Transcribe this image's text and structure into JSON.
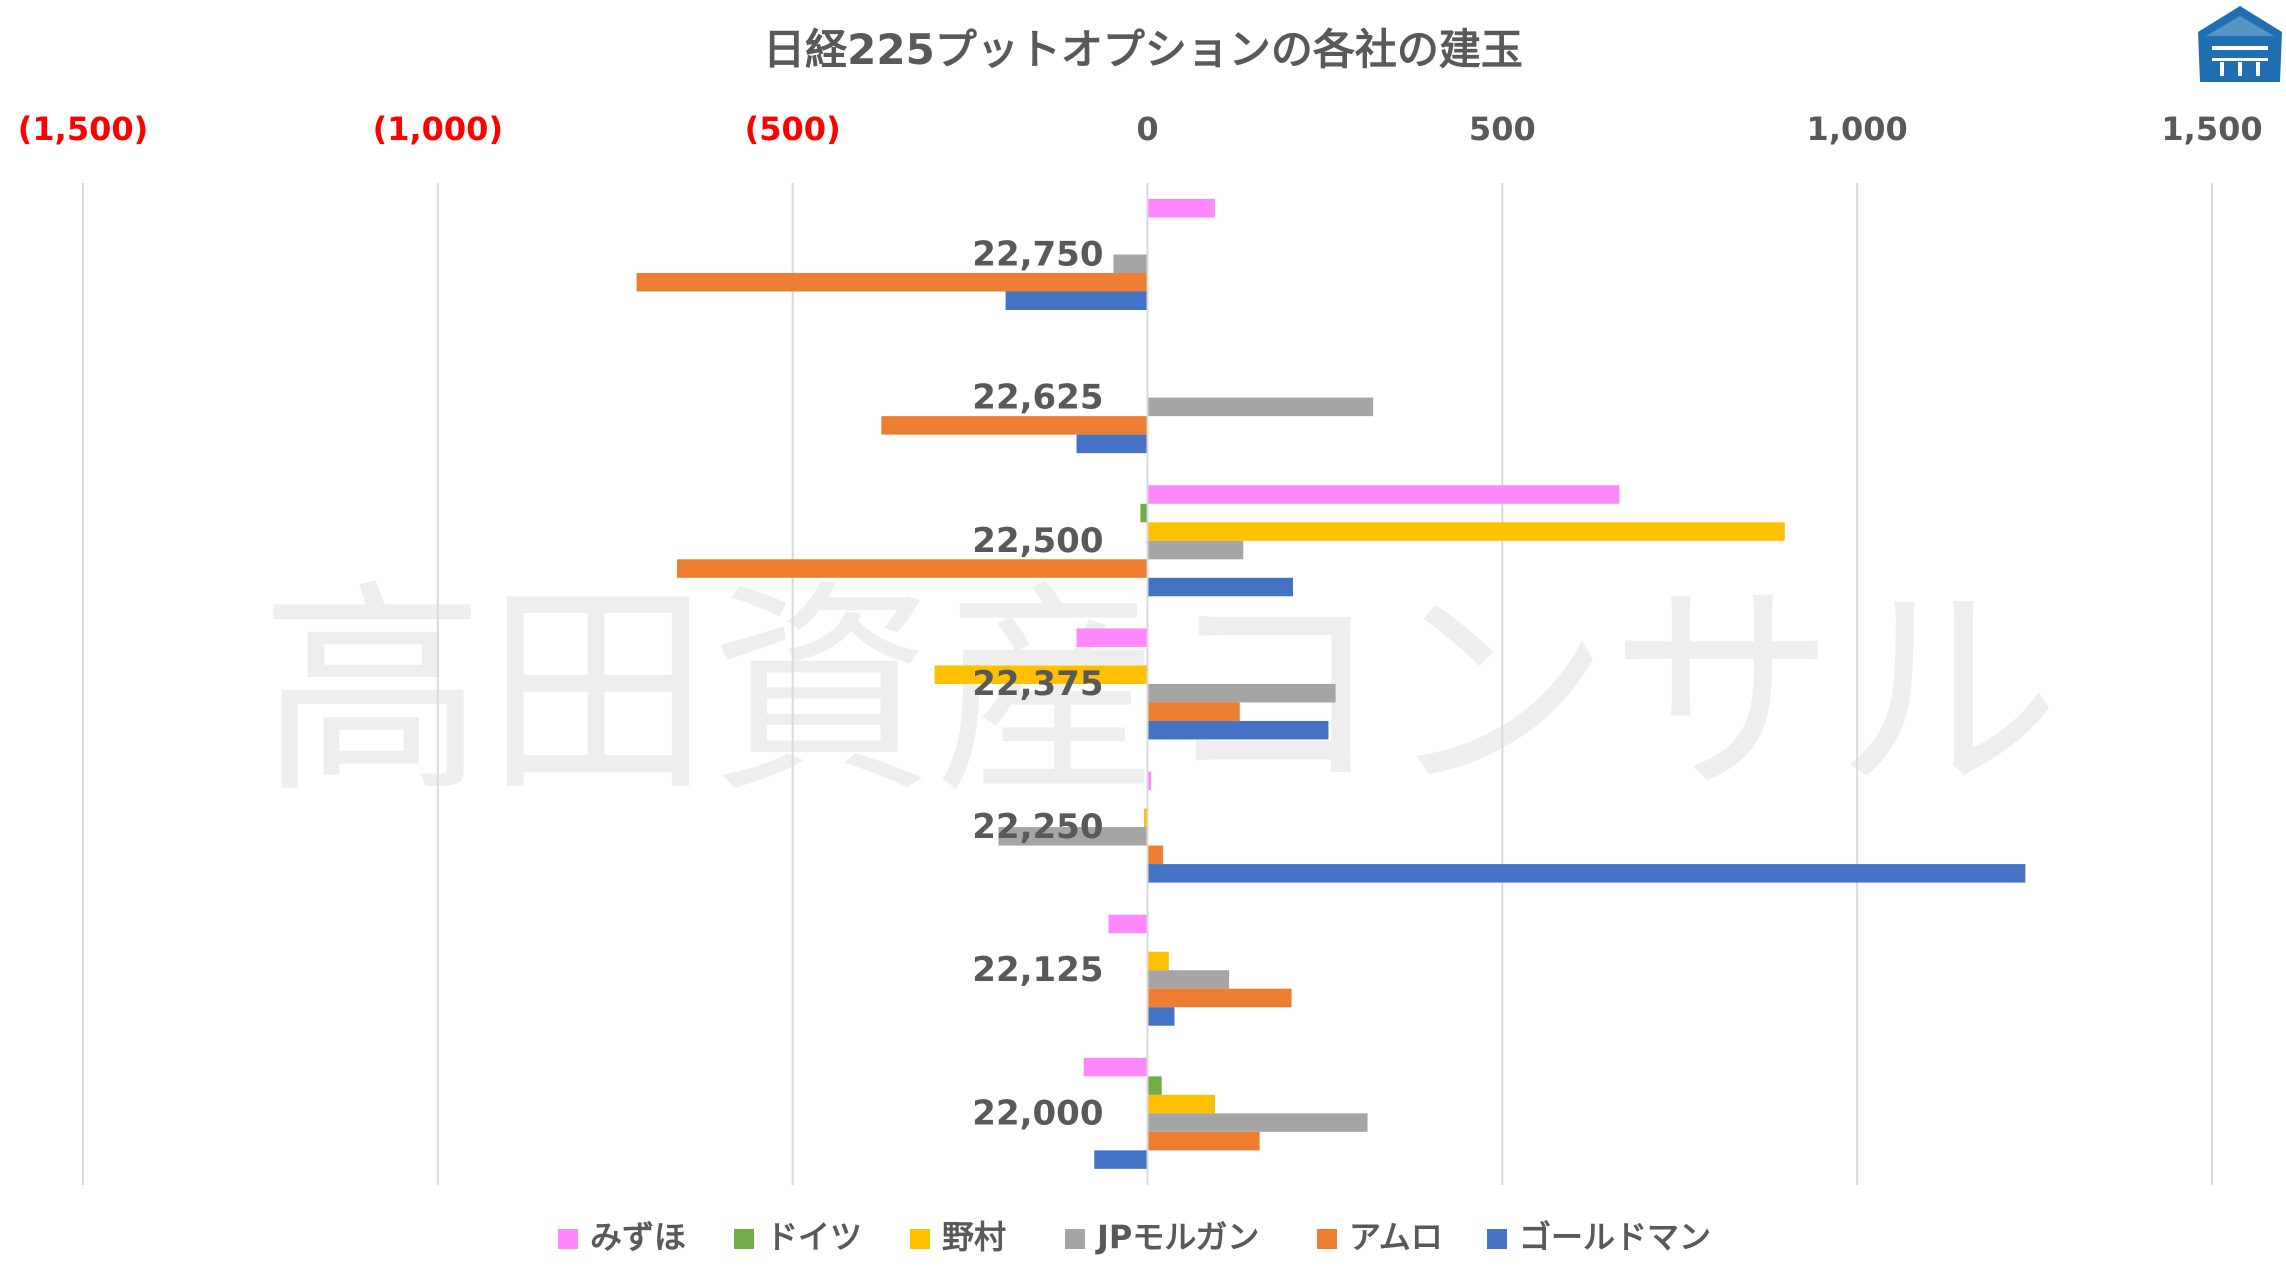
{
  "chart_data": {
    "type": "bar",
    "orientation": "horizontal",
    "title": "日経225プットオプションの各社の建玉",
    "watermark": "高田資産コンサル",
    "xlim": [
      -1500,
      1500
    ],
    "x_ticks": [
      {
        "value": -1500,
        "label": "(1,500)"
      },
      {
        "value": -1000,
        "label": "(1,000)"
      },
      {
        "value": -500,
        "label": "(500)"
      },
      {
        "value": 0,
        "label": "0"
      },
      {
        "value": 500,
        "label": "500"
      },
      {
        "value": 1000,
        "label": "1,000"
      },
      {
        "value": 1500,
        "label": "1,500"
      }
    ],
    "x_axis_position": "top",
    "negative_tick_color": "#ff0000",
    "gridlines": "vertical",
    "legend_position": "bottom",
    "categories": [
      "22,750",
      "22,625",
      "22,500",
      "22,375",
      "22,250",
      "22,125",
      "22,000"
    ],
    "series": [
      {
        "name": "みずほ",
        "color": "#ff88ff",
        "values": [
          95,
          0,
          665,
          -100,
          5,
          -55,
          -90
        ]
      },
      {
        "name": "ドイツ",
        "color": "#70ad47",
        "values": [
          0,
          0,
          -10,
          0,
          0,
          0,
          20
        ]
      },
      {
        "name": "野村",
        "color": "#ffc000",
        "values": [
          0,
          0,
          898,
          -300,
          -5,
          30,
          95
        ]
      },
      {
        "name": "JPモルガン",
        "color": "#a5a5a5",
        "values": [
          -48,
          318,
          135,
          265,
          -210,
          115,
          310
        ]
      },
      {
        "name": "アムロ",
        "color": "#ed7d31",
        "values": [
          -720,
          -375,
          -663,
          130,
          22,
          203,
          158
        ]
      },
      {
        "name": "ゴールドマン",
        "color": "#4472c4",
        "values": [
          -200,
          -100,
          205,
          255,
          1237,
          38,
          -75
        ]
      }
    ]
  }
}
